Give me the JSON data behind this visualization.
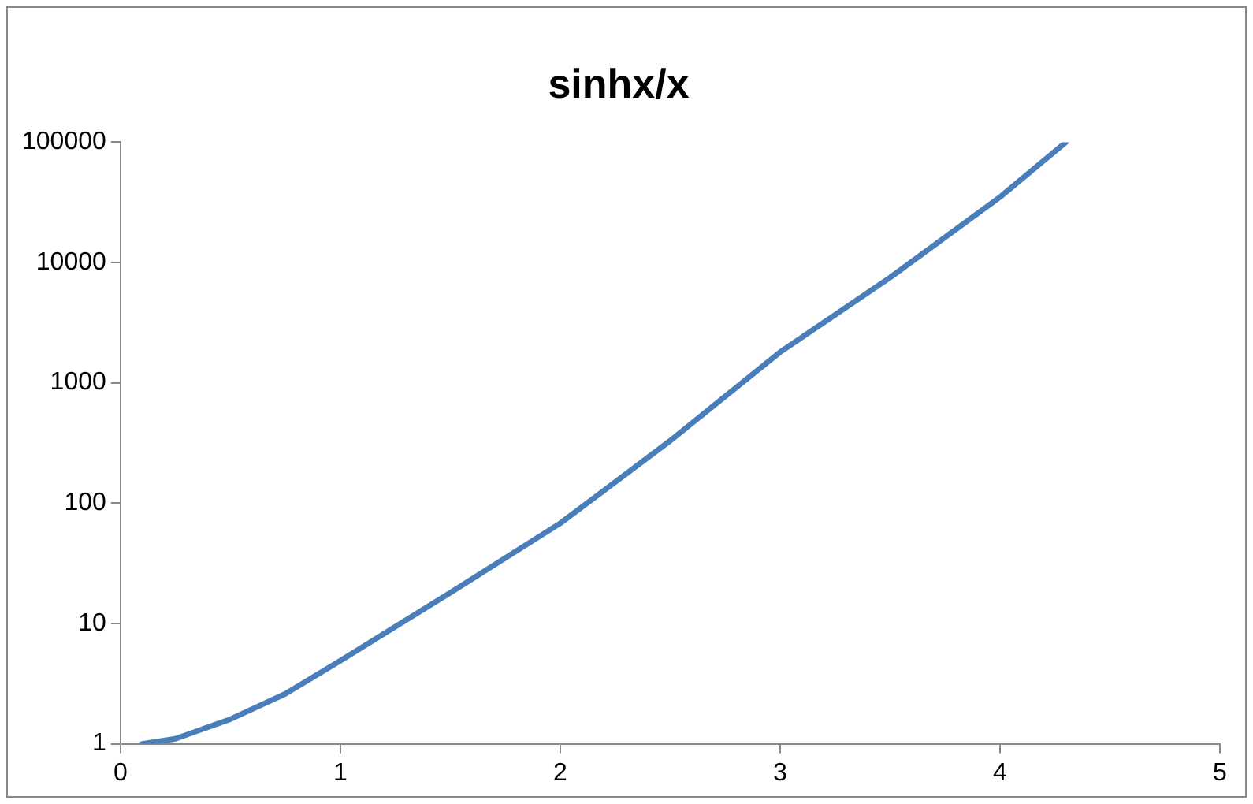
{
  "chart_data": {
    "type": "line",
    "title": "sinhx/x",
    "x": [
      0.1,
      0.25,
      0.5,
      0.75,
      1,
      1.5,
      2,
      2.5,
      3,
      3.5,
      4,
      4.3
    ],
    "series": [
      {
        "color": "#4a7ebb",
        "values": [
          1.0,
          1.1,
          1.6,
          2.6,
          4.9,
          18,
          68,
          330,
          1800,
          7500,
          35000,
          100000
        ]
      }
    ],
    "xlim": [
      0,
      5
    ],
    "xticks": [
      0,
      1,
      2,
      3,
      4,
      5
    ],
    "ylim": [
      1,
      100000
    ],
    "yticks": [
      1,
      10,
      100,
      1000,
      10000,
      100000
    ],
    "log": "y",
    "grid": false,
    "legend": false,
    "marker": "none",
    "line_style": "solid"
  }
}
